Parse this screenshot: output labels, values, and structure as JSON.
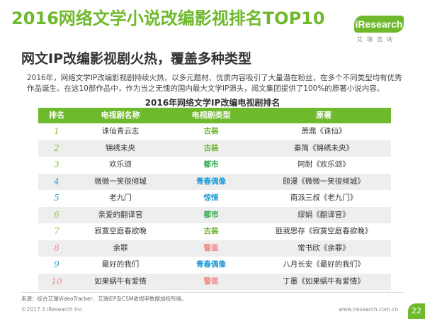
{
  "header": {
    "title": "2016网络文学小说改编影视排名TOP10",
    "logo_text": "iResearch",
    "logo_subtext": "艾瑞咨询"
  },
  "subtitle": "网文IP改编影视剧火热，覆盖多种类型",
  "description": "2016年，网络文学IP改编影视剧持续火热，以多元题材、优质内容吸引了大量潜在粉丝，在多个不同类型均有优秀作品诞生。在这10部作品中，作为当之无愧的国内最大文学IP源头，阅文集团提供了100%的原著小说内容。",
  "table": {
    "title": "2016年网络文学IP改编电视剧排名",
    "headers": [
      "排名",
      "电视剧名称",
      "电视剧类型",
      "原著"
    ],
    "rows": [
      {
        "rank": "1",
        "rank_color": "#8dc63f",
        "name": "诛仙青云志",
        "genre": "古装",
        "genre_color": "#6fb92c",
        "origin": "萧鼎《诛仙》"
      },
      {
        "rank": "2",
        "rank_color": "#8dc63f",
        "name": "锦绣未央",
        "genre": "古装",
        "genre_color": "#6fb92c",
        "origin": "秦简《锦绣未央》"
      },
      {
        "rank": "3",
        "rank_color": "#8dc63f",
        "name": "欢乐颂",
        "genre": "都市",
        "genre_color": "#2aa84a",
        "origin": "阿耐《欢乐颂》"
      },
      {
        "rank": "4",
        "rank_color": "#2fa6c8",
        "name": "微微一笑很倾城",
        "genre": "青春偶像",
        "genre_color": "#1e9ad6",
        "origin": "顾漫《微微一笑很倾城》"
      },
      {
        "rank": "5",
        "rank_color": "#2fa6c8",
        "name": "老九门",
        "genre": "惊悚",
        "genre_color": "#1e9ad6",
        "origin": "南派三叔《老九门》"
      },
      {
        "rank": "6",
        "rank_color": "#8dc63f",
        "name": "亲爱的翻译官",
        "genre": "都市",
        "genre_color": "#2aa84a",
        "origin": "缪娟《翻译官》"
      },
      {
        "rank": "7",
        "rank_color": "#8dc63f",
        "name": "寂寞空庭春欲晚",
        "genre": "古装",
        "genre_color": "#6fb92c",
        "origin": "匪我思存《寂寞空庭春欲晚》"
      },
      {
        "rank": "8",
        "rank_color": "#f08a8a",
        "name": "余罪",
        "genre": "警匪",
        "genre_color": "#f08a8a",
        "origin": "常书欣《余罪》"
      },
      {
        "rank": "9",
        "rank_color": "#2fa6c8",
        "name": "最好的我们",
        "genre": "青春偶像",
        "genre_color": "#1e9ad6",
        "origin": "八月长安《最好的我们》"
      },
      {
        "rank": "10",
        "rank_color": "#f08a8a",
        "name": "如果蜗牛有爱情",
        "genre": "警匪",
        "genre_color": "#f08a8a",
        "origin": "丁墨《如果蜗牛有爱情》"
      }
    ]
  },
  "footer": {
    "source": "来源：综合艾瑞VideoTracker、艾瑞iEP及CSM收视率数据加权所得。",
    "copyright": "©2017.3 iResearch Inc.",
    "website": "www.iresearch.com.cn",
    "page_number": "22"
  }
}
